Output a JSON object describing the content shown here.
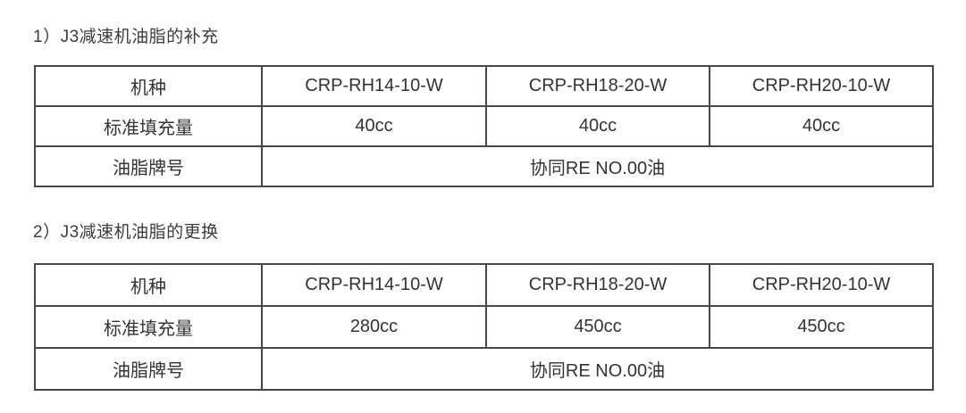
{
  "colors": {
    "background": "#ffffff",
    "text": "#333333",
    "heading_text": "#3c3c3c",
    "table_border": "#474747"
  },
  "sections": [
    {
      "heading": "1）J3减速机油脂的补充",
      "table": {
        "model_row": {
          "label": "机种",
          "values": [
            "CRP-RH14-10-W",
            "CRP-RH18-20-W",
            "CRP-RH20-10-W"
          ]
        },
        "fill_row": {
          "label": "标准填充量",
          "values": [
            "40cc",
            "40cc",
            "40cc"
          ]
        },
        "grease_row": {
          "label": "油脂牌号",
          "value": "协同RE NO.00油"
        }
      }
    },
    {
      "heading": "2）J3减速机油脂的更换",
      "table": {
        "model_row": {
          "label": "机种",
          "values": [
            "CRP-RH14-10-W",
            "CRP-RH18-20-W",
            "CRP-RH20-10-W"
          ]
        },
        "fill_row": {
          "label": "标准填充量",
          "values": [
            "280cc",
            "450cc",
            "450cc"
          ]
        },
        "grease_row": {
          "label": "油脂牌号",
          "value": "协同RE NO.00油"
        }
      }
    }
  ]
}
